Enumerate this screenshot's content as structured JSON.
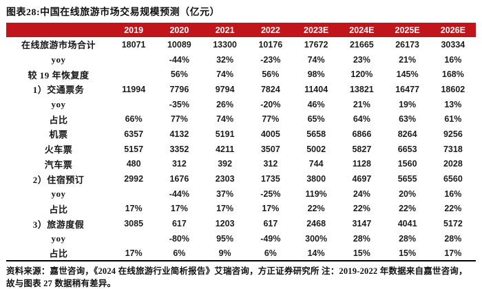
{
  "title": "图表28:中国在线旅游市场交易规模预测（亿元）",
  "colors": {
    "header_bg": "#C0151A",
    "header_text": "#FFFFFF",
    "body_text": "#1C1C1C"
  },
  "chart_data": {
    "type": "table",
    "title": "图表28:中国在线旅游市场交易规模预测（亿元）",
    "unit": "亿元",
    "categories": [
      "2019",
      "2020",
      "2021",
      "2022",
      "2023E",
      "2024E",
      "2025E",
      "2026E"
    ],
    "series": [
      {
        "name": "在线旅游市场合计",
        "values": [
          "18071",
          "10089",
          "13300",
          "10176",
          "17672",
          "21665",
          "26173",
          "30334"
        ]
      },
      {
        "name": "yoy",
        "values": [
          "",
          "-44%",
          "32%",
          "-23%",
          "74%",
          "23%",
          "21%",
          "16%"
        ]
      },
      {
        "name": "较 19 年恢复度",
        "values": [
          "",
          "56%",
          "74%",
          "56%",
          "98%",
          "120%",
          "145%",
          "168%"
        ]
      },
      {
        "name": "1）交通票务",
        "values": [
          "11994",
          "7796",
          "9794",
          "7824",
          "11404",
          "13821",
          "16477",
          "18602"
        ]
      },
      {
        "name": "yoy",
        "values": [
          "",
          "-35%",
          "26%",
          "-20%",
          "46%",
          "21%",
          "19%",
          "13%"
        ]
      },
      {
        "name": "占比",
        "values": [
          "66%",
          "77%",
          "74%",
          "77%",
          "65%",
          "64%",
          "63%",
          "61%"
        ]
      },
      {
        "name": "机票",
        "values": [
          "6357",
          "4132",
          "5191",
          "4005",
          "5658",
          "6866",
          "8264",
          "9256"
        ]
      },
      {
        "name": "火车票",
        "values": [
          "5157",
          "3352",
          "4211",
          "3507",
          "5002",
          "5827",
          "6653",
          "7318"
        ]
      },
      {
        "name": "汽车票",
        "values": [
          "480",
          "312",
          "392",
          "312",
          "744",
          "1128",
          "1560",
          "2028"
        ]
      },
      {
        "name": "2）住宿预订",
        "values": [
          "2992",
          "1676",
          "2303",
          "1735",
          "3800",
          "4697",
          "5655",
          "6560"
        ]
      },
      {
        "name": "yoy",
        "values": [
          "",
          "-44%",
          "37%",
          "-25%",
          "119%",
          "24%",
          "20%",
          "16%"
        ]
      },
      {
        "name": "占比",
        "values": [
          "17%",
          "17%",
          "17%",
          "17%",
          "22%",
          "22%",
          "22%",
          "22%"
        ]
      },
      {
        "name": "3）旅游度假",
        "values": [
          "3085",
          "617",
          "1203",
          "617",
          "2468",
          "3147",
          "4041",
          "5172"
        ]
      },
      {
        "name": "yoy",
        "values": [
          "",
          "-80%",
          "95%",
          "-49%",
          "300%",
          "28%",
          "28%",
          "28%"
        ]
      },
      {
        "name": "占比",
        "values": [
          "17%",
          "6%",
          "9%",
          "6%",
          "14%",
          "15%",
          "15%",
          "17%"
        ]
      }
    ]
  },
  "footer": {
    "text": "资料来源：嘉世咨询，《2024 在线旅游行业简析报告》艾瑞咨询，方正证券研究所 注：2019-2022 年数据来自嘉世咨询，故与图表 27 数据稍有差异。"
  }
}
